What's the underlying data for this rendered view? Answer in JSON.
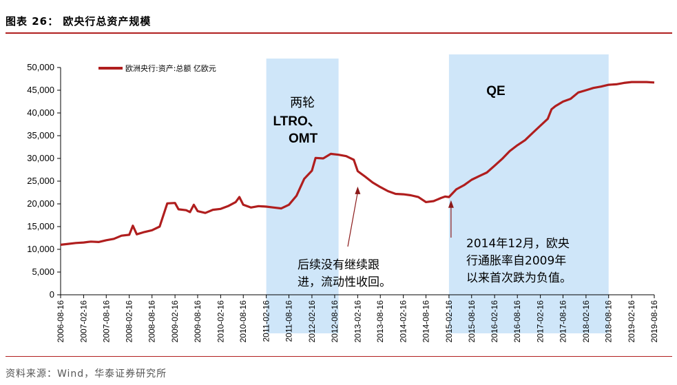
{
  "header": {
    "title": "图表 26：  欧央行总资产规模"
  },
  "source": "资料来源：Wind，华泰证券研究所",
  "chart_data": {
    "type": "line",
    "title": "",
    "xlabel": "",
    "ylabel": "",
    "ylim": [
      0,
      50000
    ],
    "yticks": [
      "0",
      "5,000",
      "10,000",
      "15,000",
      "20,000",
      "25,000",
      "30,000",
      "35,000",
      "40,000",
      "45,000",
      "50,000"
    ],
    "xticks": [
      "2006-08-16",
      "2007-02-16",
      "2007-08-16",
      "2008-02-16",
      "2008-08-16",
      "2009-02-16",
      "2009-08-16",
      "2010-02-16",
      "2010-08-16",
      "2011-02-16",
      "2011-08-16",
      "2012-02-16",
      "2012-08-16",
      "2013-02-16",
      "2013-08-16",
      "2014-02-16",
      "2014-08-16",
      "2015-02-16",
      "2015-08-16",
      "2016-02-16",
      "2016-08-16",
      "2017-02-16",
      "2017-08-16",
      "2018-02-16",
      "2018-08-16",
      "2019-02-16",
      "2019-08-16"
    ],
    "legend": {
      "placement": "top-left",
      "label": "欧洲央行:资产:总额 亿欧元"
    },
    "grid": false,
    "series_color": "#b01e1e",
    "shade_color": "#cfe6f9",
    "series": [
      {
        "name": "欧洲央行:资产:总额 亿欧元",
        "points": [
          [
            "2006-08-16",
            11000
          ],
          [
            "2006-10-16",
            11200
          ],
          [
            "2006-12-16",
            11400
          ],
          [
            "2007-02-16",
            11500
          ],
          [
            "2007-04-16",
            11700
          ],
          [
            "2007-06-16",
            11600
          ],
          [
            "2007-08-16",
            12000
          ],
          [
            "2007-10-16",
            12300
          ],
          [
            "2007-12-16",
            13000
          ],
          [
            "2008-02-16",
            13200
          ],
          [
            "2008-03-16",
            15200
          ],
          [
            "2008-04-16",
            13300
          ],
          [
            "2008-06-16",
            13800
          ],
          [
            "2008-08-16",
            14200
          ],
          [
            "2008-10-16",
            15000
          ],
          [
            "2008-12-16",
            20100
          ],
          [
            "2009-02-16",
            20200
          ],
          [
            "2009-03-16",
            18800
          ],
          [
            "2009-05-16",
            18600
          ],
          [
            "2009-06-16",
            18200
          ],
          [
            "2009-07-16",
            19800
          ],
          [
            "2009-08-16",
            18400
          ],
          [
            "2009-10-16",
            18000
          ],
          [
            "2009-12-16",
            18700
          ],
          [
            "2010-02-16",
            18900
          ],
          [
            "2010-04-16",
            19500
          ],
          [
            "2010-06-16",
            20400
          ],
          [
            "2010-07-16",
            21500
          ],
          [
            "2010-08-16",
            19800
          ],
          [
            "2010-10-16",
            19200
          ],
          [
            "2010-12-16",
            19500
          ],
          [
            "2011-02-16",
            19400
          ],
          [
            "2011-04-16",
            19200
          ],
          [
            "2011-06-16",
            19000
          ],
          [
            "2011-08-16",
            19800
          ],
          [
            "2011-10-16",
            21800
          ],
          [
            "2011-12-16",
            25500
          ],
          [
            "2012-02-16",
            27300
          ],
          [
            "2012-03-16",
            30100
          ],
          [
            "2012-05-16",
            30000
          ],
          [
            "2012-07-16",
            31000
          ],
          [
            "2012-09-16",
            30800
          ],
          [
            "2012-11-16",
            30500
          ],
          [
            "2013-01-16",
            29700
          ],
          [
            "2013-02-16",
            27200
          ],
          [
            "2013-04-16",
            26000
          ],
          [
            "2013-06-16",
            24700
          ],
          [
            "2013-08-16",
            23700
          ],
          [
            "2013-10-16",
            22800
          ],
          [
            "2013-12-16",
            22200
          ],
          [
            "2014-02-16",
            22100
          ],
          [
            "2014-04-16",
            21900
          ],
          [
            "2014-06-16",
            21500
          ],
          [
            "2014-08-16",
            20400
          ],
          [
            "2014-10-16",
            20600
          ],
          [
            "2014-12-16",
            21300
          ],
          [
            "2015-01-16",
            21600
          ],
          [
            "2015-02-16",
            21500
          ],
          [
            "2015-04-16",
            23200
          ],
          [
            "2015-06-16",
            24100
          ],
          [
            "2015-08-16",
            25300
          ],
          [
            "2015-10-16",
            26100
          ],
          [
            "2015-12-16",
            26900
          ],
          [
            "2016-02-16",
            28400
          ],
          [
            "2016-04-16",
            29900
          ],
          [
            "2016-06-16",
            31600
          ],
          [
            "2016-08-16",
            32900
          ],
          [
            "2016-10-16",
            34000
          ],
          [
            "2016-12-16",
            35600
          ],
          [
            "2017-02-16",
            37200
          ],
          [
            "2017-04-16",
            38700
          ],
          [
            "2017-05-16",
            40800
          ],
          [
            "2017-06-16",
            41500
          ],
          [
            "2017-08-16",
            42500
          ],
          [
            "2017-10-16",
            43100
          ],
          [
            "2017-12-16",
            44500
          ],
          [
            "2018-02-16",
            45000
          ],
          [
            "2018-04-16",
            45500
          ],
          [
            "2018-06-16",
            45800
          ],
          [
            "2018-08-16",
            46200
          ],
          [
            "2018-10-16",
            46300
          ],
          [
            "2018-12-16",
            46600
          ],
          [
            "2019-02-16",
            46800
          ],
          [
            "2019-04-16",
            46800
          ],
          [
            "2019-06-16",
            46800
          ],
          [
            "2019-08-16",
            46700
          ]
        ]
      }
    ],
    "shaded_periods": [
      {
        "start": "2011-02-16",
        "end": "2012-09-16",
        "label_lines": [
          "两轮",
          "LTRO、",
          "OMT"
        ]
      },
      {
        "start": "2015-02-16",
        "end": "2018-08-16",
        "label_lines": [
          "QE"
        ]
      }
    ],
    "annotations": [
      {
        "text_lines": [
          "后续没有继续跟",
          "进，流动性收回。"
        ],
        "arrow_to": [
          "2013-02-16",
          23800
        ]
      },
      {
        "text_lines": [
          "2014年12月，欧央",
          "行通胀率自2009年",
          "以来首次跌为负值。"
        ],
        "arrow_to": [
          "2015-02-16",
          20800
        ]
      }
    ]
  }
}
